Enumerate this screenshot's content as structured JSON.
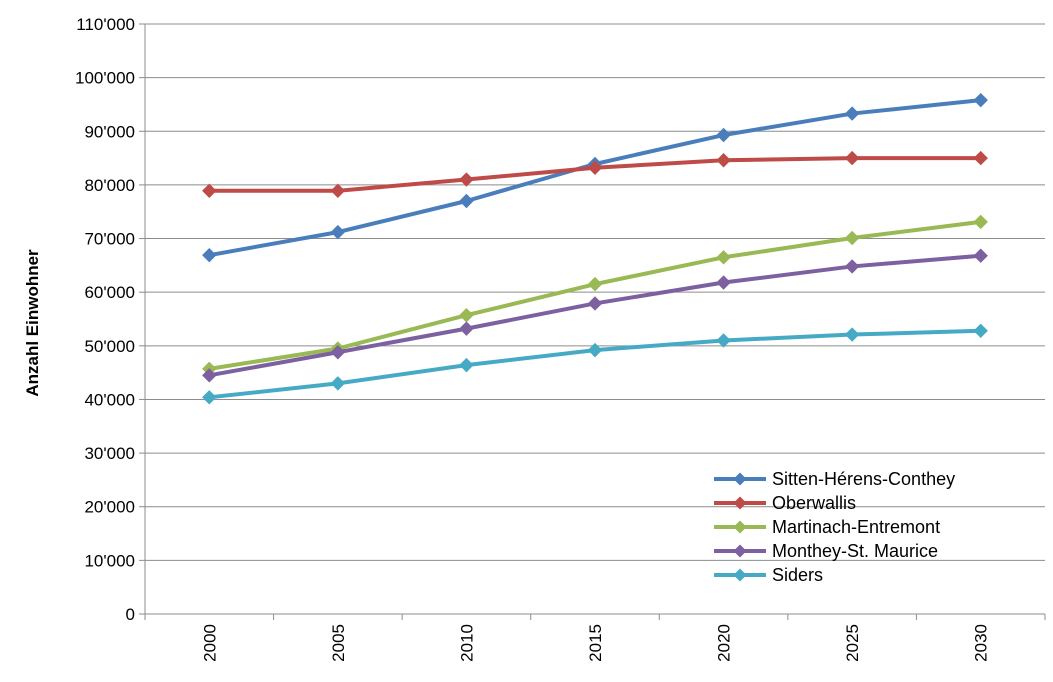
{
  "chart_data": {
    "type": "line",
    "title": "",
    "xlabel": "",
    "ylabel": "Anzahl Einwohner",
    "categories": [
      "2000",
      "2005",
      "2010",
      "2015",
      "2020",
      "2025",
      "2030"
    ],
    "ylim": [
      0,
      110000
    ],
    "y_ticks": [
      "0",
      "10'000",
      "20'000",
      "30'000",
      "40'000",
      "50'000",
      "60'000",
      "70'000",
      "80'000",
      "90'000",
      "100'000",
      "110'000"
    ],
    "grid": "horizontal",
    "legend_position": "bottom-right",
    "series": [
      {
        "name": "Sitten-Hérens-Conthey",
        "color": "#4a7ebb",
        "values": [
          66900,
          71200,
          77000,
          83900,
          89300,
          93300,
          95800
        ]
      },
      {
        "name": "Oberwallis",
        "color": "#be4b48",
        "values": [
          78900,
          78900,
          81000,
          83200,
          84600,
          85000,
          85000
        ]
      },
      {
        "name": "Martinach-Entremont",
        "color": "#98b954",
        "values": [
          45700,
          49500,
          55700,
          61500,
          66500,
          70100,
          73100
        ]
      },
      {
        "name": "Monthey-St. Maurice",
        "color": "#7d60a0",
        "values": [
          44500,
          48800,
          53200,
          57900,
          61800,
          64800,
          66800
        ]
      },
      {
        "name": "Siders",
        "color": "#46aac5",
        "values": [
          40400,
          43000,
          46400,
          49200,
          51000,
          52100,
          52800
        ]
      }
    ]
  }
}
